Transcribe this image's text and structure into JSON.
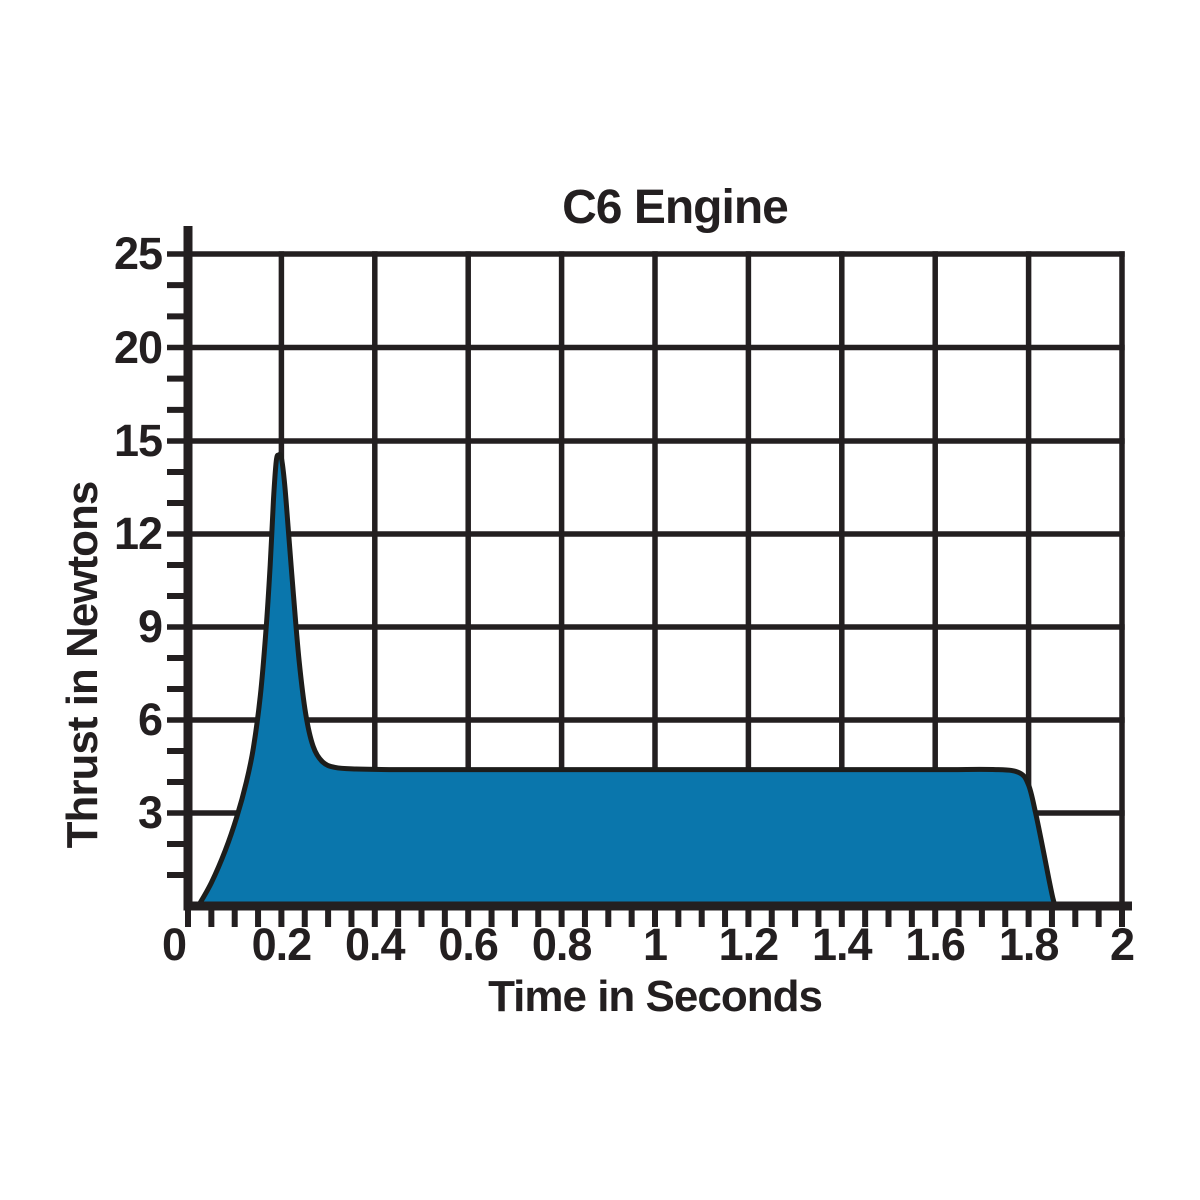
{
  "title": "C6 Engine",
  "x_axis": {
    "label": "Time in Seconds",
    "tick_labels": [
      "0",
      "0.2",
      "0.4",
      "0.6",
      "0.8",
      "1",
      "1.2",
      "1.4",
      "1.6",
      "1.8",
      "2"
    ]
  },
  "y_axis": {
    "label": "Thrust in Newtons",
    "tick_labels": [
      "25",
      "20",
      "15",
      "12",
      "9",
      "6",
      "3"
    ]
  },
  "colors": {
    "area_fill": "#0a76ac",
    "line": "#1d1d1b",
    "grid": "#231f20",
    "text": "#231f20",
    "background": "#ffffff"
  },
  "chart_data": {
    "type": "area",
    "title": "C6 Engine",
    "xlabel": "Time in Seconds",
    "ylabel": "Thrust in Newtons",
    "series_name": "C6 engine thrust curve",
    "xlim": [
      0,
      2
    ],
    "x_gridline_step": 0.2,
    "x_minor_tick_step": 0.05,
    "y_gridlines": [
      3,
      6,
      9,
      12,
      15,
      20,
      25
    ],
    "y_minor_ticks_per_division": 3,
    "y_axis_scale_note": "Non-linear axis: gridlines 3,6,9,12,15,20,25 are equally spaced (0-15 linear, 15-25 compressed)",
    "grid": true,
    "legend": false,
    "peak_thrust_newtons": 14.5,
    "peak_time_s": 0.19,
    "sustained_thrust_newtons": 4.4,
    "burnout_time_s": 1.85,
    "points": [
      [
        0.022,
        0
      ],
      [
        0.05,
        0.75
      ],
      [
        0.08,
        1.8
      ],
      [
        0.105,
        2.9
      ],
      [
        0.125,
        4.0
      ],
      [
        0.14,
        5.1
      ],
      [
        0.155,
        6.8
      ],
      [
        0.167,
        8.9
      ],
      [
        0.176,
        11.0
      ],
      [
        0.183,
        13.1
      ],
      [
        0.189,
        14.35
      ],
      [
        0.194,
        14.55
      ],
      [
        0.2,
        14.45
      ],
      [
        0.207,
        13.6
      ],
      [
        0.215,
        12.1
      ],
      [
        0.226,
        10.0
      ],
      [
        0.238,
        7.9
      ],
      [
        0.252,
        6.2
      ],
      [
        0.268,
        5.15
      ],
      [
        0.288,
        4.65
      ],
      [
        0.315,
        4.47
      ],
      [
        0.36,
        4.42
      ],
      [
        0.45,
        4.4
      ],
      [
        0.7,
        4.4
      ],
      [
        1.0,
        4.4
      ],
      [
        1.3,
        4.4
      ],
      [
        1.6,
        4.4
      ],
      [
        1.73,
        4.4
      ],
      [
        1.78,
        4.3
      ],
      [
        1.8,
        3.9
      ],
      [
        1.815,
        3.0
      ],
      [
        1.83,
        1.9
      ],
      [
        1.843,
        0.9
      ],
      [
        1.852,
        0.25
      ],
      [
        1.857,
        0
      ]
    ]
  }
}
